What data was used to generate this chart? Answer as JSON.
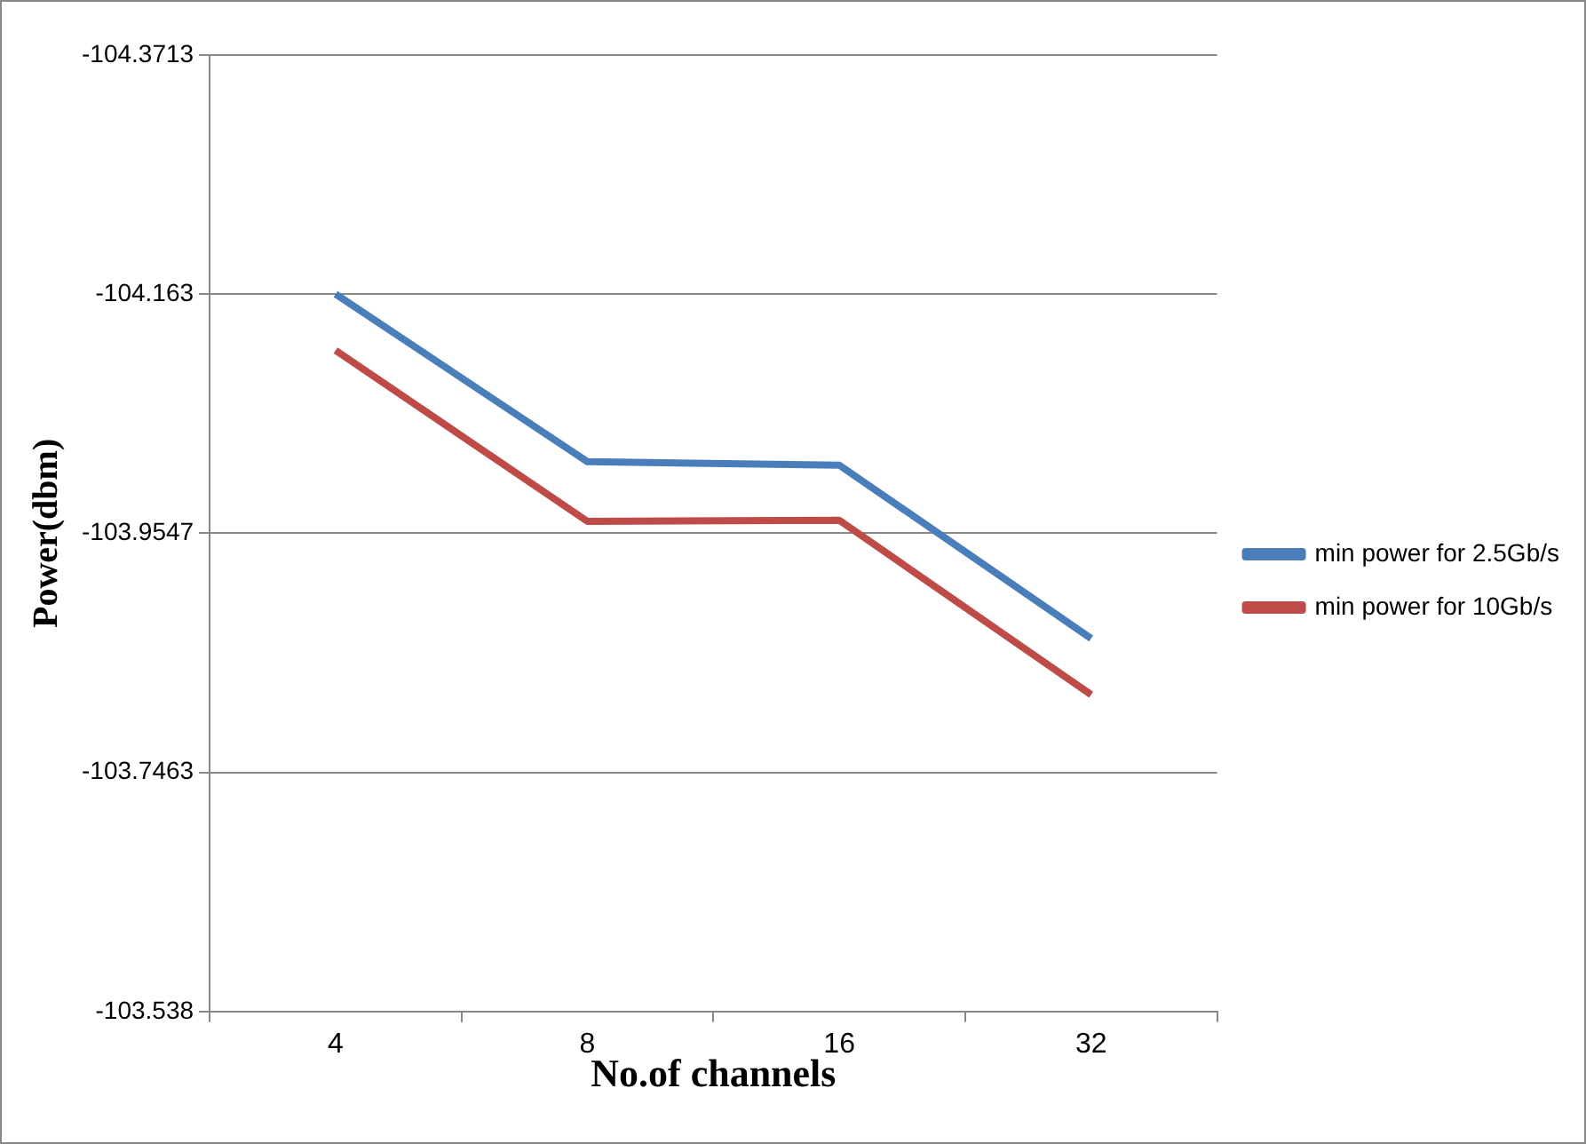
{
  "chart_data": {
    "type": "line",
    "xlabel": "No.of channels",
    "ylabel": "Power(dbm)",
    "categories": [
      "4",
      "8",
      "16",
      "32"
    ],
    "series": [
      {
        "name": "min power for 2.5Gb/s",
        "color": "#4a7ebb",
        "values": [
          -104.163,
          -104.017,
          -104.014,
          -103.863
        ]
      },
      {
        "name": "min power for 10Gb/s",
        "color": "#be4b48",
        "values": [
          -104.114,
          -103.965,
          -103.966,
          -103.814
        ]
      }
    ],
    "ylim": [
      -103.538,
      -104.3713
    ],
    "yticks": [
      -104.3713,
      -104.163,
      -103.9547,
      -103.7463,
      -103.538
    ],
    "grid": "y",
    "legend": "right",
    "marker": "none",
    "line_style": "solid"
  }
}
